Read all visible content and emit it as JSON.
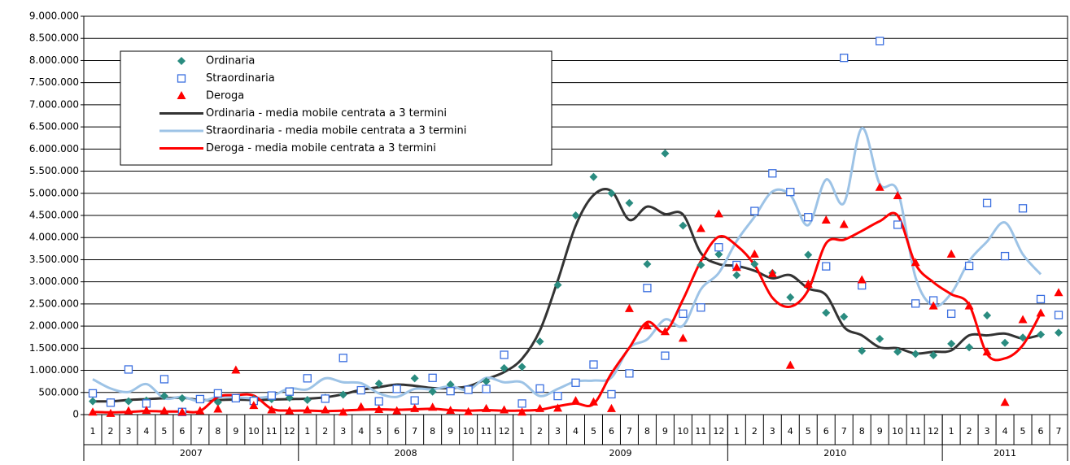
{
  "chart_data": {
    "type": "scatter-line",
    "categories": [
      "1",
      "2",
      "3",
      "4",
      "5",
      "6",
      "7",
      "8",
      "9",
      "10",
      "11",
      "12",
      "1",
      "2",
      "3",
      "4",
      "5",
      "6",
      "7",
      "8",
      "9",
      "10",
      "11",
      "12",
      "1",
      "2",
      "3",
      "4",
      "5",
      "6",
      "7",
      "8",
      "9",
      "10",
      "11",
      "12",
      "1",
      "2",
      "3",
      "4",
      "5",
      "6",
      "7",
      "8",
      "9",
      "10",
      "11",
      "12",
      "1",
      "2",
      "3",
      "4",
      "5",
      "6",
      "7"
    ],
    "years": [
      "2007",
      "2008",
      "2009",
      "2010",
      "2011"
    ],
    "ylim": [
      0,
      9000000
    ],
    "yticks": [
      {
        "value": 0,
        "label": "0"
      },
      {
        "value": 500000,
        "label": "500.000"
      },
      {
        "value": 1000000,
        "label": "1.000.000"
      },
      {
        "value": 1500000,
        "label": "1.500.000"
      },
      {
        "value": 2000000,
        "label": "2.000.000"
      },
      {
        "value": 2500000,
        "label": "2.500.000"
      },
      {
        "value": 3000000,
        "label": "3.000.000"
      },
      {
        "value": 3500000,
        "label": "3.500.000"
      },
      {
        "value": 4000000,
        "label": "4.000.000"
      },
      {
        "value": 4500000,
        "label": "4.500.000"
      },
      {
        "value": 5000000,
        "label": "5.000.000"
      },
      {
        "value": 5500000,
        "label": "5.500.000"
      },
      {
        "value": 6000000,
        "label": "6.000.000"
      },
      {
        "value": 6500000,
        "label": "6.500.000"
      },
      {
        "value": 7000000,
        "label": "7.000.000"
      },
      {
        "value": 7500000,
        "label": "7.500.000"
      },
      {
        "value": 8000000,
        "label": "8.000.000"
      },
      {
        "value": 8500000,
        "label": "8.500.000"
      },
      {
        "value": 9000000,
        "label": "9.000.000"
      }
    ],
    "grid": true,
    "legend": "upper left",
    "series": [
      {
        "name": "Ordinaria",
        "kind": "diamond",
        "color": "#2a8c80",
        "values": [
          300000,
          280000,
          300000,
          320000,
          420000,
          370000,
          350000,
          280000,
          370000,
          350000,
          350000,
          380000,
          330000,
          380000,
          450000,
          550000,
          700000,
          600000,
          820000,
          520000,
          680000,
          580000,
          750000,
          1050000,
          1080000,
          1650000,
          2930000,
          4500000,
          5370000,
          5000000,
          4780000,
          3400000,
          5900000,
          4270000,
          3380000,
          3620000,
          3150000,
          3400000,
          3200000,
          2650000,
          3610000,
          2300000,
          2210000,
          1440000,
          1710000,
          1420000,
          1370000,
          1340000,
          1600000,
          1520000,
          2240000,
          1620000,
          1740000,
          1810000,
          1850000
        ]
      },
      {
        "name": "Straordinaria",
        "kind": "square",
        "color": "#3b6fe0",
        "values": [
          480000,
          270000,
          1020000,
          250000,
          800000,
          60000,
          350000,
          480000,
          370000,
          310000,
          430000,
          520000,
          820000,
          360000,
          1280000,
          550000,
          300000,
          580000,
          320000,
          830000,
          530000,
          560000,
          580000,
          1350000,
          250000,
          590000,
          420000,
          720000,
          1130000,
          460000,
          930000,
          2860000,
          1330000,
          2280000,
          2420000,
          3780000,
          3380000,
          4600000,
          5450000,
          5030000,
          4460000,
          3350000,
          8060000,
          2920000,
          8440000,
          4290000,
          2510000,
          2580000,
          2280000,
          3360000,
          4780000,
          3580000,
          4660000,
          2610000,
          2250000
        ]
      },
      {
        "name": "Deroga",
        "kind": "triangle",
        "color": "#ff0000",
        "values": [
          50000,
          20000,
          80000,
          90000,
          80000,
          50000,
          80000,
          120000,
          1000000,
          200000,
          100000,
          80000,
          100000,
          100000,
          50000,
          170000,
          110000,
          80000,
          130000,
          160000,
          90000,
          60000,
          130000,
          100000,
          50000,
          130000,
          140000,
          310000,
          280000,
          130000,
          2390000,
          2000000,
          1870000,
          1720000,
          4200000,
          4530000,
          3320000,
          3620000,
          3180000,
          1110000,
          2940000,
          4390000,
          4290000,
          3040000,
          5130000,
          4940000,
          3430000,
          2450000,
          3620000,
          2450000,
          1410000,
          270000,
          2140000,
          2290000,
          2750000
        ]
      },
      {
        "name": "Ordinaria  - media mobile centrata a 3 termini",
        "kind": "line",
        "color": "#333333",
        "values": [
          300000,
          300000,
          330000,
          350000,
          370000,
          380000,
          330000,
          330000,
          340000,
          330000,
          340000,
          350000,
          360000,
          390000,
          460000,
          560000,
          620000,
          680000,
          650000,
          600000,
          600000,
          640000,
          800000,
          960000,
          1260000,
          1900000,
          3030000,
          4270000,
          4960000,
          5050000,
          4400000,
          4700000,
          4530000,
          4520000,
          3650000,
          3400000,
          3360000,
          3250000,
          3080000,
          3150000,
          2850000,
          2700000,
          1980000,
          1790000,
          1520000,
          1500000,
          1380000,
          1420000,
          1450000,
          1790000,
          1790000,
          1830000,
          1720000,
          1800000,
          null
        ]
      },
      {
        "name": "Straordinaria - media mobile centrata a 3 termini",
        "kind": "line",
        "color": "#9dc3e6",
        "values": [
          800000,
          590000,
          510000,
          690000,
          370000,
          400000,
          300000,
          400000,
          390000,
          370000,
          420000,
          590000,
          570000,
          820000,
          730000,
          710000,
          480000,
          400000,
          580000,
          570000,
          640000,
          560000,
          830000,
          730000,
          730000,
          420000,
          580000,
          750000,
          770000,
          840000,
          1510000,
          1700000,
          2150000,
          2010000,
          2830000,
          3200000,
          3920000,
          4470000,
          5040000,
          4960000,
          4280000,
          5310000,
          4780000,
          6470000,
          5210000,
          5050000,
          3100000,
          2460000,
          2740000,
          3470000,
          3910000,
          4340000,
          3620000,
          3170000,
          null
        ]
      },
      {
        "name": "Deroga - media mobile centrata a 3 termini",
        "kind": "line",
        "color": "#ff0000",
        "values": [
          60000,
          50000,
          60000,
          80000,
          70000,
          70000,
          80000,
          400000,
          440000,
          430000,
          130000,
          90000,
          90000,
          80000,
          90000,
          110000,
          120000,
          110000,
          120000,
          130000,
          100000,
          90000,
          100000,
          90000,
          90000,
          110000,
          190000,
          250000,
          240000,
          930000,
          1510000,
          2090000,
          1870000,
          2600000,
          3470000,
          4020000,
          3820000,
          3380000,
          2640000,
          2440000,
          2810000,
          3870000,
          3950000,
          4150000,
          4370000,
          4500000,
          3400000,
          2990000,
          2720000,
          2480000,
          1370000,
          1270000,
          1570000,
          2290000,
          null
        ]
      }
    ]
  }
}
